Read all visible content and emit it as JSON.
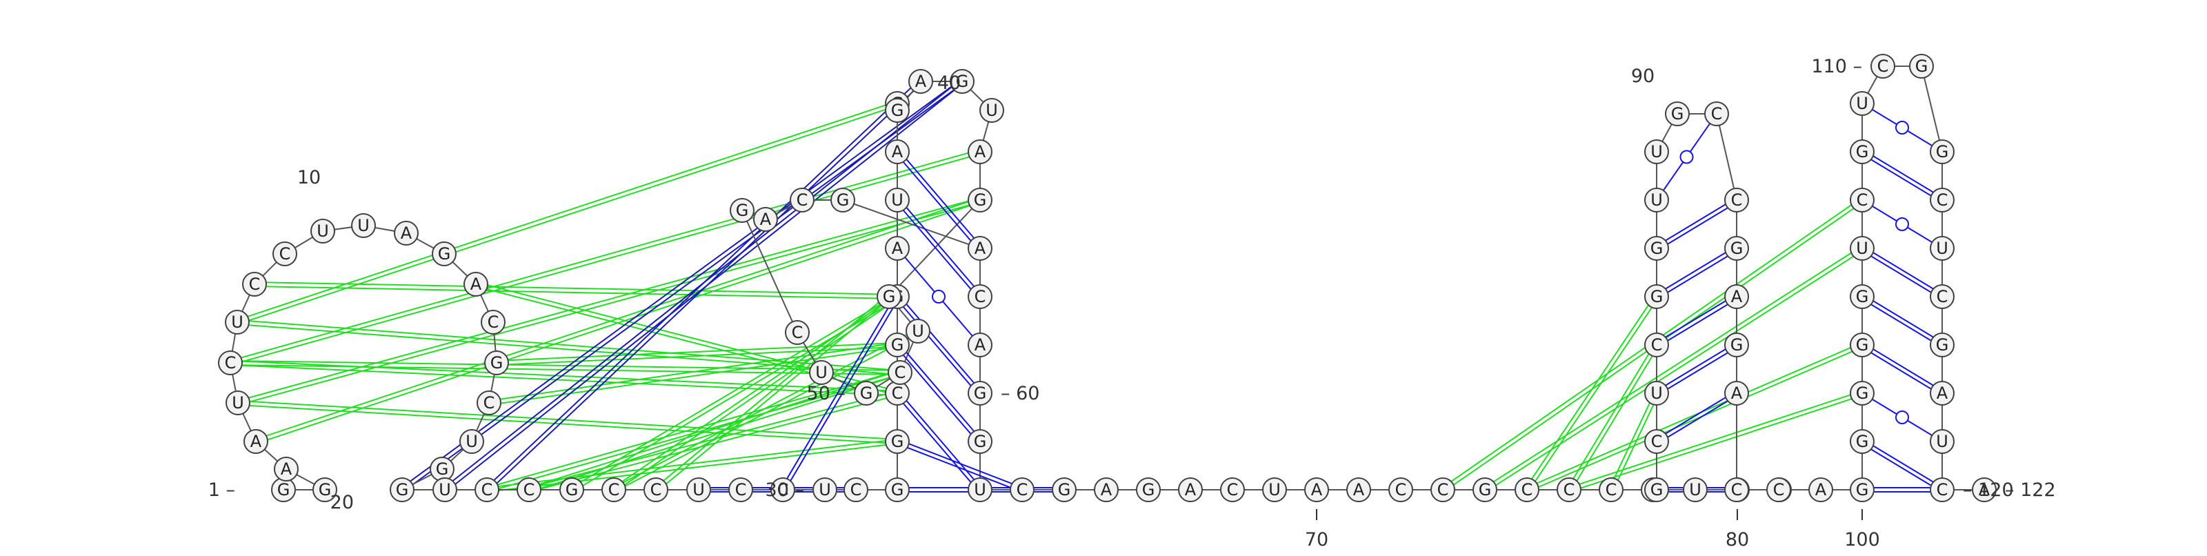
{
  "colors": {
    "backbone": "#555555",
    "canonical_pair": "#1414e6",
    "wobble_pair": "#1414e6",
    "interaction": "#22dd22",
    "interaction_blue": "#1a1ab4",
    "node_fill": "#f2f2f2",
    "node_stroke": "#404040",
    "label": "#333333",
    "background": "#ffffff"
  },
  "sequence": "GGAAUCUCCUUAGACGCUGGUCCGCCUCCUCGGCGGAUAGGAGUAGGUCGUCGACGACAGGUCGAGACUAACCGCCCAUCGGCUCGGUUGCCGAGACCAGUGGGGUCGUCGGCUCGAUCAAUC",
  "numbering": {
    "1": "1",
    "10": "10",
    "20": "20",
    "30": "30",
    "40": "40",
    "50": "50",
    "60": "60",
    "70": "70",
    "80": "80",
    "90": "90",
    "100": "100",
    "110": "110",
    "120": "120",
    "122": "122"
  },
  "base_pairs": [
    {
      "i": 27,
      "j": 31,
      "type": "canonical"
    },
    {
      "i": 28,
      "j": 30,
      "type": "canonical"
    },
    {
      "i": 29,
      "j": 36,
      "type": "canonical"
    },
    {
      "i": 32,
      "j": 64,
      "type": "canonical"
    },
    {
      "i": 33,
      "j": 63,
      "type": "canonical"
    },
    {
      "i": 34,
      "j": 62,
      "type": "canonical"
    },
    {
      "i": 35,
      "j": 61,
      "type": "canonical"
    },
    {
      "i": 36,
      "j": 60,
      "type": "canonical"
    },
    {
      "i": 37,
      "j": 59,
      "type": "wobble"
    },
    {
      "i": 38,
      "j": 58,
      "type": "canonical"
    },
    {
      "i": 39,
      "j": 57,
      "type": "canonical"
    },
    {
      "i": 82,
      "j": 97,
      "type": "canonical"
    },
    {
      "i": 83,
      "j": 96,
      "type": "canonical"
    },
    {
      "i": 84,
      "j": 95,
      "type": "canonical"
    },
    {
      "i": 85,
      "j": 94,
      "type": "canonical"
    },
    {
      "i": 86,
      "j": 93,
      "type": "canonical"
    },
    {
      "i": 87,
      "j": 92,
      "type": "canonical"
    },
    {
      "i": 88,
      "j": 91,
      "type": "wobble"
    },
    {
      "i": 101,
      "j": 120,
      "type": "canonical"
    },
    {
      "i": 102,
      "j": 119,
      "type": "canonical"
    },
    {
      "i": 103,
      "j": 118,
      "type": "wobble"
    },
    {
      "i": 104,
      "j": 117,
      "type": "canonical"
    },
    {
      "i": 105,
      "j": 116,
      "type": "canonical"
    },
    {
      "i": 106,
      "j": 115,
      "type": "canonical"
    },
    {
      "i": 107,
      "j": 114,
      "type": "wobble"
    },
    {
      "i": 108,
      "j": 113,
      "type": "canonical"
    },
    {
      "i": 109,
      "j": 112,
      "type": "wobble"
    }
  ],
  "interactions_green": [
    {
      "a": 4,
      "b": 46
    },
    {
      "a": 5,
      "b": 46
    },
    {
      "a": 6,
      "b": 45
    },
    {
      "a": 7,
      "b": 40
    },
    {
      "a": 8,
      "b": 36
    },
    {
      "a": 6,
      "b": 34
    },
    {
      "a": 5,
      "b": 33
    },
    {
      "a": 6,
      "b": 49
    },
    {
      "a": 7,
      "b": 49
    },
    {
      "a": 22,
      "b": 49
    },
    {
      "a": 23,
      "b": 49
    },
    {
      "a": 25,
      "b": 48
    },
    {
      "a": 26,
      "b": 47
    },
    {
      "a": 24,
      "b": 36
    },
    {
      "a": 25,
      "b": 36
    },
    {
      "a": 22,
      "b": 33
    },
    {
      "a": 23,
      "b": 34
    },
    {
      "a": 16,
      "b": 35
    },
    {
      "a": 17,
      "b": 35
    },
    {
      "a": 14,
      "b": 34
    },
    {
      "a": 73,
      "b": 107
    },
    {
      "a": 74,
      "b": 106
    },
    {
      "a": 75,
      "b": 104
    },
    {
      "a": 76,
      "b": 103
    },
    {
      "a": 75,
      "b": 86
    },
    {
      "a": 76,
      "b": 85
    },
    {
      "a": 77,
      "b": 84
    }
  ],
  "interactions_blue": [
    {
      "a": 20,
      "b": 43
    },
    {
      "a": 21,
      "b": 43
    },
    {
      "a": 22,
      "b": 42
    }
  ]
}
